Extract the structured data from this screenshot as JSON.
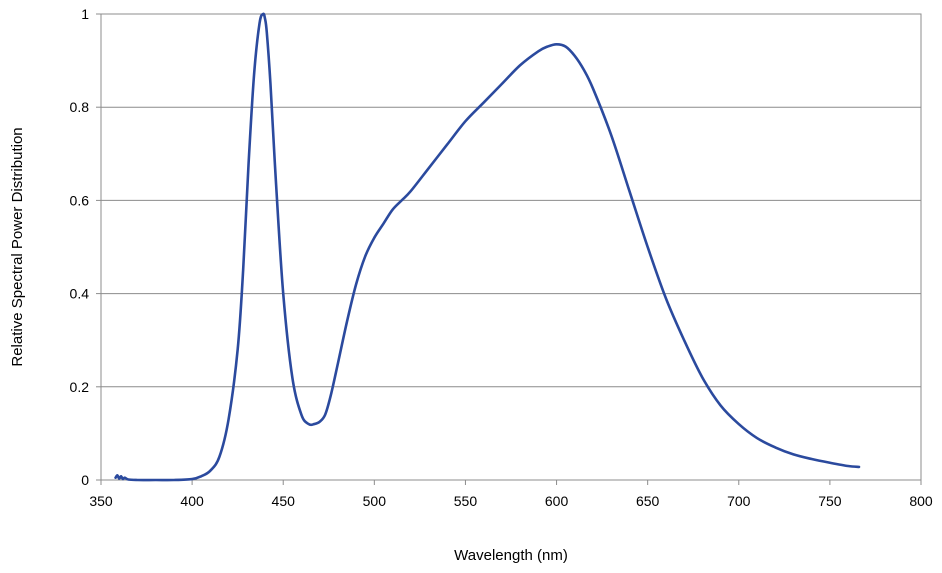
{
  "chart_data": {
    "type": "line",
    "xlabel": "Wavelength (nm)",
    "ylabel": "Relative Spectral Power Distribution",
    "xlim": [
      350,
      800
    ],
    "ylim": [
      0,
      1
    ],
    "x_ticks": [
      "350",
      "400",
      "450",
      "500",
      "550",
      "600",
      "650",
      "700",
      "750",
      "800"
    ],
    "y_ticks": [
      "0",
      "0.2",
      "0.4",
      "0.6",
      "0.8",
      "1"
    ],
    "grid": "horizontal",
    "series": [
      {
        "color": "#2B4A9E",
        "x": [
          358,
          359,
          360,
          361,
          362,
          363,
          365,
          370,
          380,
          390,
          400,
          405,
          410,
          415,
          420,
          425,
          428,
          431,
          434,
          437,
          439,
          440,
          441,
          443,
          446,
          450,
          455,
          460,
          464,
          467,
          470,
          473,
          476,
          480,
          485,
          490,
          495,
          500,
          505,
          510,
          515,
          520,
          530,
          540,
          550,
          560,
          570,
          580,
          590,
          595,
          600,
          605,
          610,
          615,
          620,
          630,
          640,
          650,
          660,
          670,
          680,
          690,
          700,
          710,
          720,
          730,
          740,
          750,
          760,
          766
        ],
        "y": [
          0.005,
          0.01,
          0.003,
          0.008,
          0.002,
          0.005,
          0.001,
          0.0,
          0.0,
          0.0,
          0.002,
          0.008,
          0.02,
          0.05,
          0.13,
          0.28,
          0.45,
          0.68,
          0.87,
          0.98,
          1.0,
          0.99,
          0.96,
          0.85,
          0.64,
          0.4,
          0.22,
          0.14,
          0.12,
          0.12,
          0.125,
          0.14,
          0.18,
          0.25,
          0.34,
          0.42,
          0.48,
          0.52,
          0.55,
          0.58,
          0.6,
          0.62,
          0.67,
          0.72,
          0.77,
          0.81,
          0.85,
          0.89,
          0.92,
          0.93,
          0.935,
          0.93,
          0.91,
          0.88,
          0.84,
          0.74,
          0.62,
          0.5,
          0.39,
          0.3,
          0.22,
          0.16,
          0.12,
          0.09,
          0.07,
          0.055,
          0.045,
          0.037,
          0.03,
          0.028
        ]
      }
    ]
  }
}
